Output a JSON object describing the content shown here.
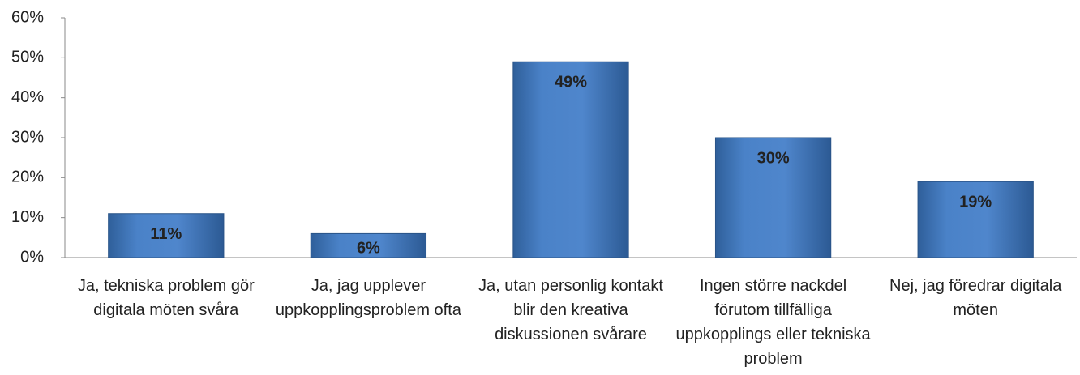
{
  "chart_data": {
    "type": "bar",
    "categories": [
      "Ja, tekniska problem gör digitala möten svåra",
      "Ja, jag upplever uppkopplingsproblem ofta",
      "Ja, utan personlig kontakt blir den kreativa diskussionen svårare",
      "Ingen större nackdel förutom tillfälliga uppkopplings eller tekniska problem",
      "Nej, jag föredrar digitala möten"
    ],
    "values": [
      11,
      6,
      49,
      30,
      19
    ],
    "value_labels": [
      "11%",
      "6%",
      "49%",
      "30%",
      "19%"
    ],
    "color": "#4a7ebb",
    "ylim": [
      0,
      60
    ],
    "yticks": [
      {
        "value": 0,
        "label": "0%"
      },
      {
        "value": 10,
        "label": "10%"
      },
      {
        "value": 20,
        "label": "20%"
      },
      {
        "value": 30,
        "label": "30%"
      },
      {
        "value": 40,
        "label": "40%"
      },
      {
        "value": 50,
        "label": "50%"
      },
      {
        "value": 60,
        "label": "60%"
      }
    ],
    "grid": false
  }
}
